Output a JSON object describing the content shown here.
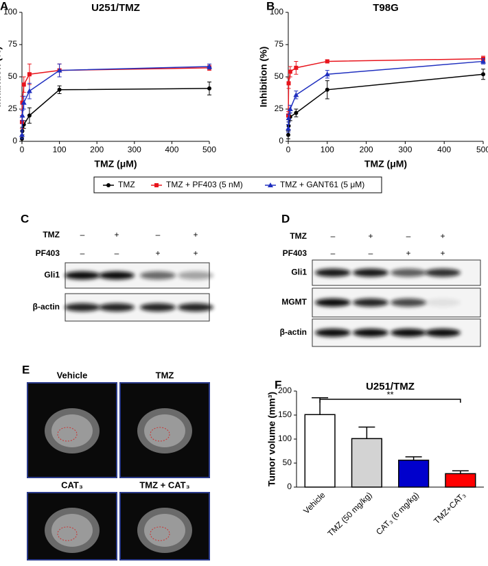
{
  "chart_data": [
    {
      "type": "line",
      "panel": "A",
      "title": "U251/TMZ",
      "x_label": "TMZ (μM)",
      "y_label": "Inhibition (%)",
      "x": [
        0,
        1,
        5,
        20,
        100,
        500
      ],
      "xlim": [
        0,
        500
      ],
      "xticks": [
        0,
        100,
        200,
        300,
        400,
        500
      ],
      "ylim": [
        0,
        100
      ],
      "yticks": [
        0,
        25,
        50,
        75,
        100
      ],
      "series": [
        {
          "name": "TMZ",
          "color": "#000000",
          "marker": "circle",
          "values": [
            2,
            8,
            13,
            20,
            40,
            41
          ],
          "errors": [
            2,
            3,
            3,
            6,
            3,
            5
          ]
        },
        {
          "name": "TMZ + PF403 (5 nM)",
          "color": "#e8141c",
          "marker": "square",
          "values": [
            15,
            30,
            44,
            52,
            55,
            57
          ],
          "errors": [
            5,
            5,
            6,
            8,
            5,
            2
          ]
        },
        {
          "name": "TMZ + GANT61 (5 μM)",
          "color": "#1f2fbf",
          "marker": "triangle",
          "values": [
            5,
            20,
            30,
            39,
            55,
            58
          ],
          "errors": [
            3,
            4,
            5,
            6,
            5,
            2
          ]
        }
      ]
    },
    {
      "type": "line",
      "panel": "B",
      "title": "T98G",
      "x_label": "TMZ (μM)",
      "y_label": "Inhibition (%)",
      "x": [
        0,
        1,
        5,
        20,
        100,
        500
      ],
      "xlim": [
        0,
        500
      ],
      "xticks": [
        0,
        100,
        200,
        300,
        400,
        500
      ],
      "ylim": [
        0,
        100
      ],
      "yticks": [
        0,
        25,
        50,
        75,
        100
      ],
      "series": [
        {
          "color": "#000000",
          "marker": "circle",
          "values": [
            5,
            12,
            19,
            22,
            40,
            52
          ],
          "errors": [
            3,
            3,
            3,
            3,
            7,
            4
          ]
        },
        {
          "color": "#e8141c",
          "marker": "square",
          "values": [
            20,
            45,
            54,
            57,
            62,
            64
          ],
          "errors": [
            3,
            4,
            4,
            5,
            1,
            2
          ]
        },
        {
          "color": "#1f2fbf",
          "marker": "triangle",
          "values": [
            10,
            18,
            25,
            36,
            52,
            62
          ],
          "errors": [
            3,
            3,
            3,
            3,
            3,
            2
          ]
        }
      ]
    },
    {
      "type": "bar",
      "panel": "F",
      "title": "U251/TMZ",
      "y_label": "Tumor volume (mm³)",
      "categories": [
        "Vehicle",
        "TMZ (50 mg/kg)",
        "CAT₃ (6 mg/kg)",
        "TMZ+CAT₃"
      ],
      "values": [
        151,
        101,
        56,
        28
      ],
      "errors": [
        35,
        24,
        7,
        6
      ],
      "colors": [
        "#ffffff",
        "#d3d3d3",
        "#0000cc",
        "#ff0000"
      ],
      "ylim": [
        0,
        200
      ],
      "yticks": [
        0,
        50,
        100,
        150,
        200
      ],
      "annotation": "**"
    }
  ],
  "blots": [
    {
      "panel": "C",
      "rows": [
        {
          "label": "TMZ",
          "signs": [
            "–",
            "+",
            "–",
            "+"
          ]
        },
        {
          "label": "PF403",
          "signs": [
            "–",
            "–",
            "+",
            "+"
          ]
        }
      ],
      "bands": [
        "Gli1",
        "β-actin"
      ]
    },
    {
      "panel": "D",
      "rows": [
        {
          "label": "TMZ",
          "signs": [
            "–",
            "+",
            "–",
            "+"
          ]
        },
        {
          "label": "PF403",
          "signs": [
            "–",
            "–",
            "+",
            "+"
          ]
        }
      ],
      "bands": [
        "Gli1",
        "MGMT",
        "β-actin"
      ]
    }
  ],
  "mri": {
    "panel": "E",
    "images": [
      "Vehicle",
      "TMZ",
      "CAT₃",
      "TMZ + CAT₃"
    ]
  }
}
